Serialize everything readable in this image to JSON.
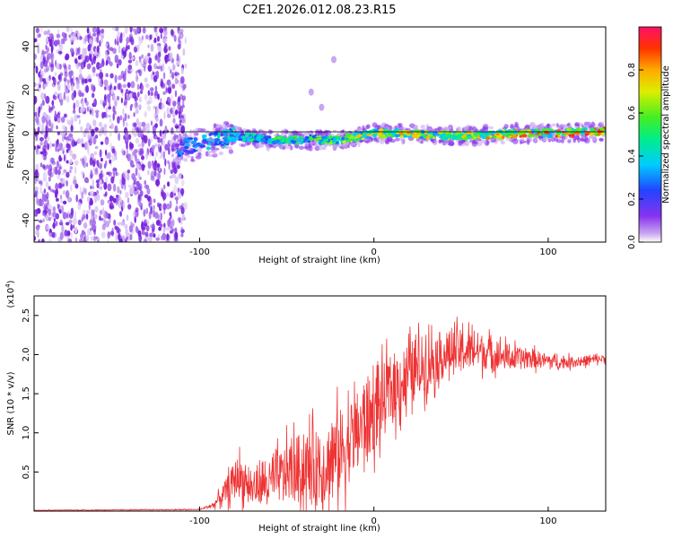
{
  "title": "C2E1.2026.012.08.23.R15",
  "colors": {
    "snr_line": "#ee3333",
    "noise_dot": "#7722dd",
    "axis": "#000000"
  },
  "chart_data": [
    {
      "type": "heatmap",
      "name": "spectrogram",
      "xlabel": "Height of straight line (km)",
      "ylabel": "Frequency (Hz)",
      "xlim": [
        -195,
        133
      ],
      "ylim": [
        -50,
        49
      ],
      "xticks": [
        -100,
        0,
        100
      ],
      "xtick_labels": [
        "-100",
        "0",
        "100"
      ],
      "yticks": [
        -40,
        -20,
        0,
        20,
        40
      ],
      "ytick_labels": [
        "-40",
        "-20",
        "0",
        "20",
        "40"
      ],
      "noise_region_x": [
        -195,
        -108
      ],
      "signal_band": {
        "x": [
          -115,
          -100,
          -80,
          -60,
          -40,
          -20,
          0,
          20,
          40,
          60,
          80,
          100,
          133
        ],
        "center_hz": [
          -7,
          -5,
          -1,
          -3,
          -3,
          -3,
          0,
          0,
          -1,
          -1,
          0,
          0,
          1
        ],
        "peak_amplitude": [
          0.3,
          0.4,
          0.5,
          0.6,
          0.6,
          0.7,
          0.85,
          0.85,
          0.8,
          0.85,
          0.9,
          0.95,
          0.95
        ]
      },
      "isolated_features": [
        {
          "x": -23,
          "y": 34
        },
        {
          "x": -36,
          "y": 19
        },
        {
          "x": -30,
          "y": 12
        }
      ]
    },
    {
      "type": "colorbar",
      "name": "amplitude-colorbar",
      "label": "Normalized spectral amplitude",
      "range": [
        0,
        1
      ],
      "ticks": [
        0.0,
        0.2,
        0.4,
        0.6,
        0.8
      ],
      "tick_labels": [
        "0.0",
        "0.2",
        "0.4",
        "0.6",
        "0.8"
      ]
    },
    {
      "type": "line",
      "name": "snr",
      "xlabel": "Height of straight line (km)",
      "ylabel": "SNR (10 * v/v)",
      "y_scale_label": "(x10",
      "y_scale_exponent": "4",
      "y_scale_close": ")",
      "xlim": [
        -195,
        133
      ],
      "ylim": [
        0,
        2.75
      ],
      "xticks": [
        -100,
        0,
        100
      ],
      "xtick_labels": [
        "-100",
        "0",
        "100"
      ],
      "yticks": [
        0.5,
        1.0,
        1.5,
        2.0,
        2.5
      ],
      "ytick_labels": [
        "0.5",
        "1.0",
        "1.5",
        "2.0",
        "2.5"
      ],
      "envelope_x": [
        -195,
        -100,
        -92,
        -85,
        -78,
        -70,
        -60,
        -50,
        -40,
        -30,
        -20,
        -10,
        0,
        10,
        20,
        30,
        40,
        50,
        60,
        70,
        80,
        90,
        100,
        110,
        120,
        133
      ],
      "envelope_mean": [
        0.01,
        0.02,
        0.08,
        0.25,
        0.45,
        0.3,
        0.35,
        0.5,
        0.55,
        0.55,
        0.75,
        1.0,
        1.25,
        1.55,
        1.75,
        1.9,
        2.0,
        2.05,
        2.05,
        2.0,
        1.95,
        1.95,
        1.92,
        1.9,
        1.92,
        1.95
      ],
      "envelope_amp": [
        0.01,
        0.01,
        0.06,
        0.25,
        0.45,
        0.3,
        0.45,
        0.6,
        0.8,
        0.8,
        0.9,
        0.85,
        0.8,
        0.75,
        0.7,
        0.6,
        0.5,
        0.45,
        0.4,
        0.3,
        0.25,
        0.2,
        0.15,
        0.12,
        0.1,
        0.08
      ]
    }
  ]
}
